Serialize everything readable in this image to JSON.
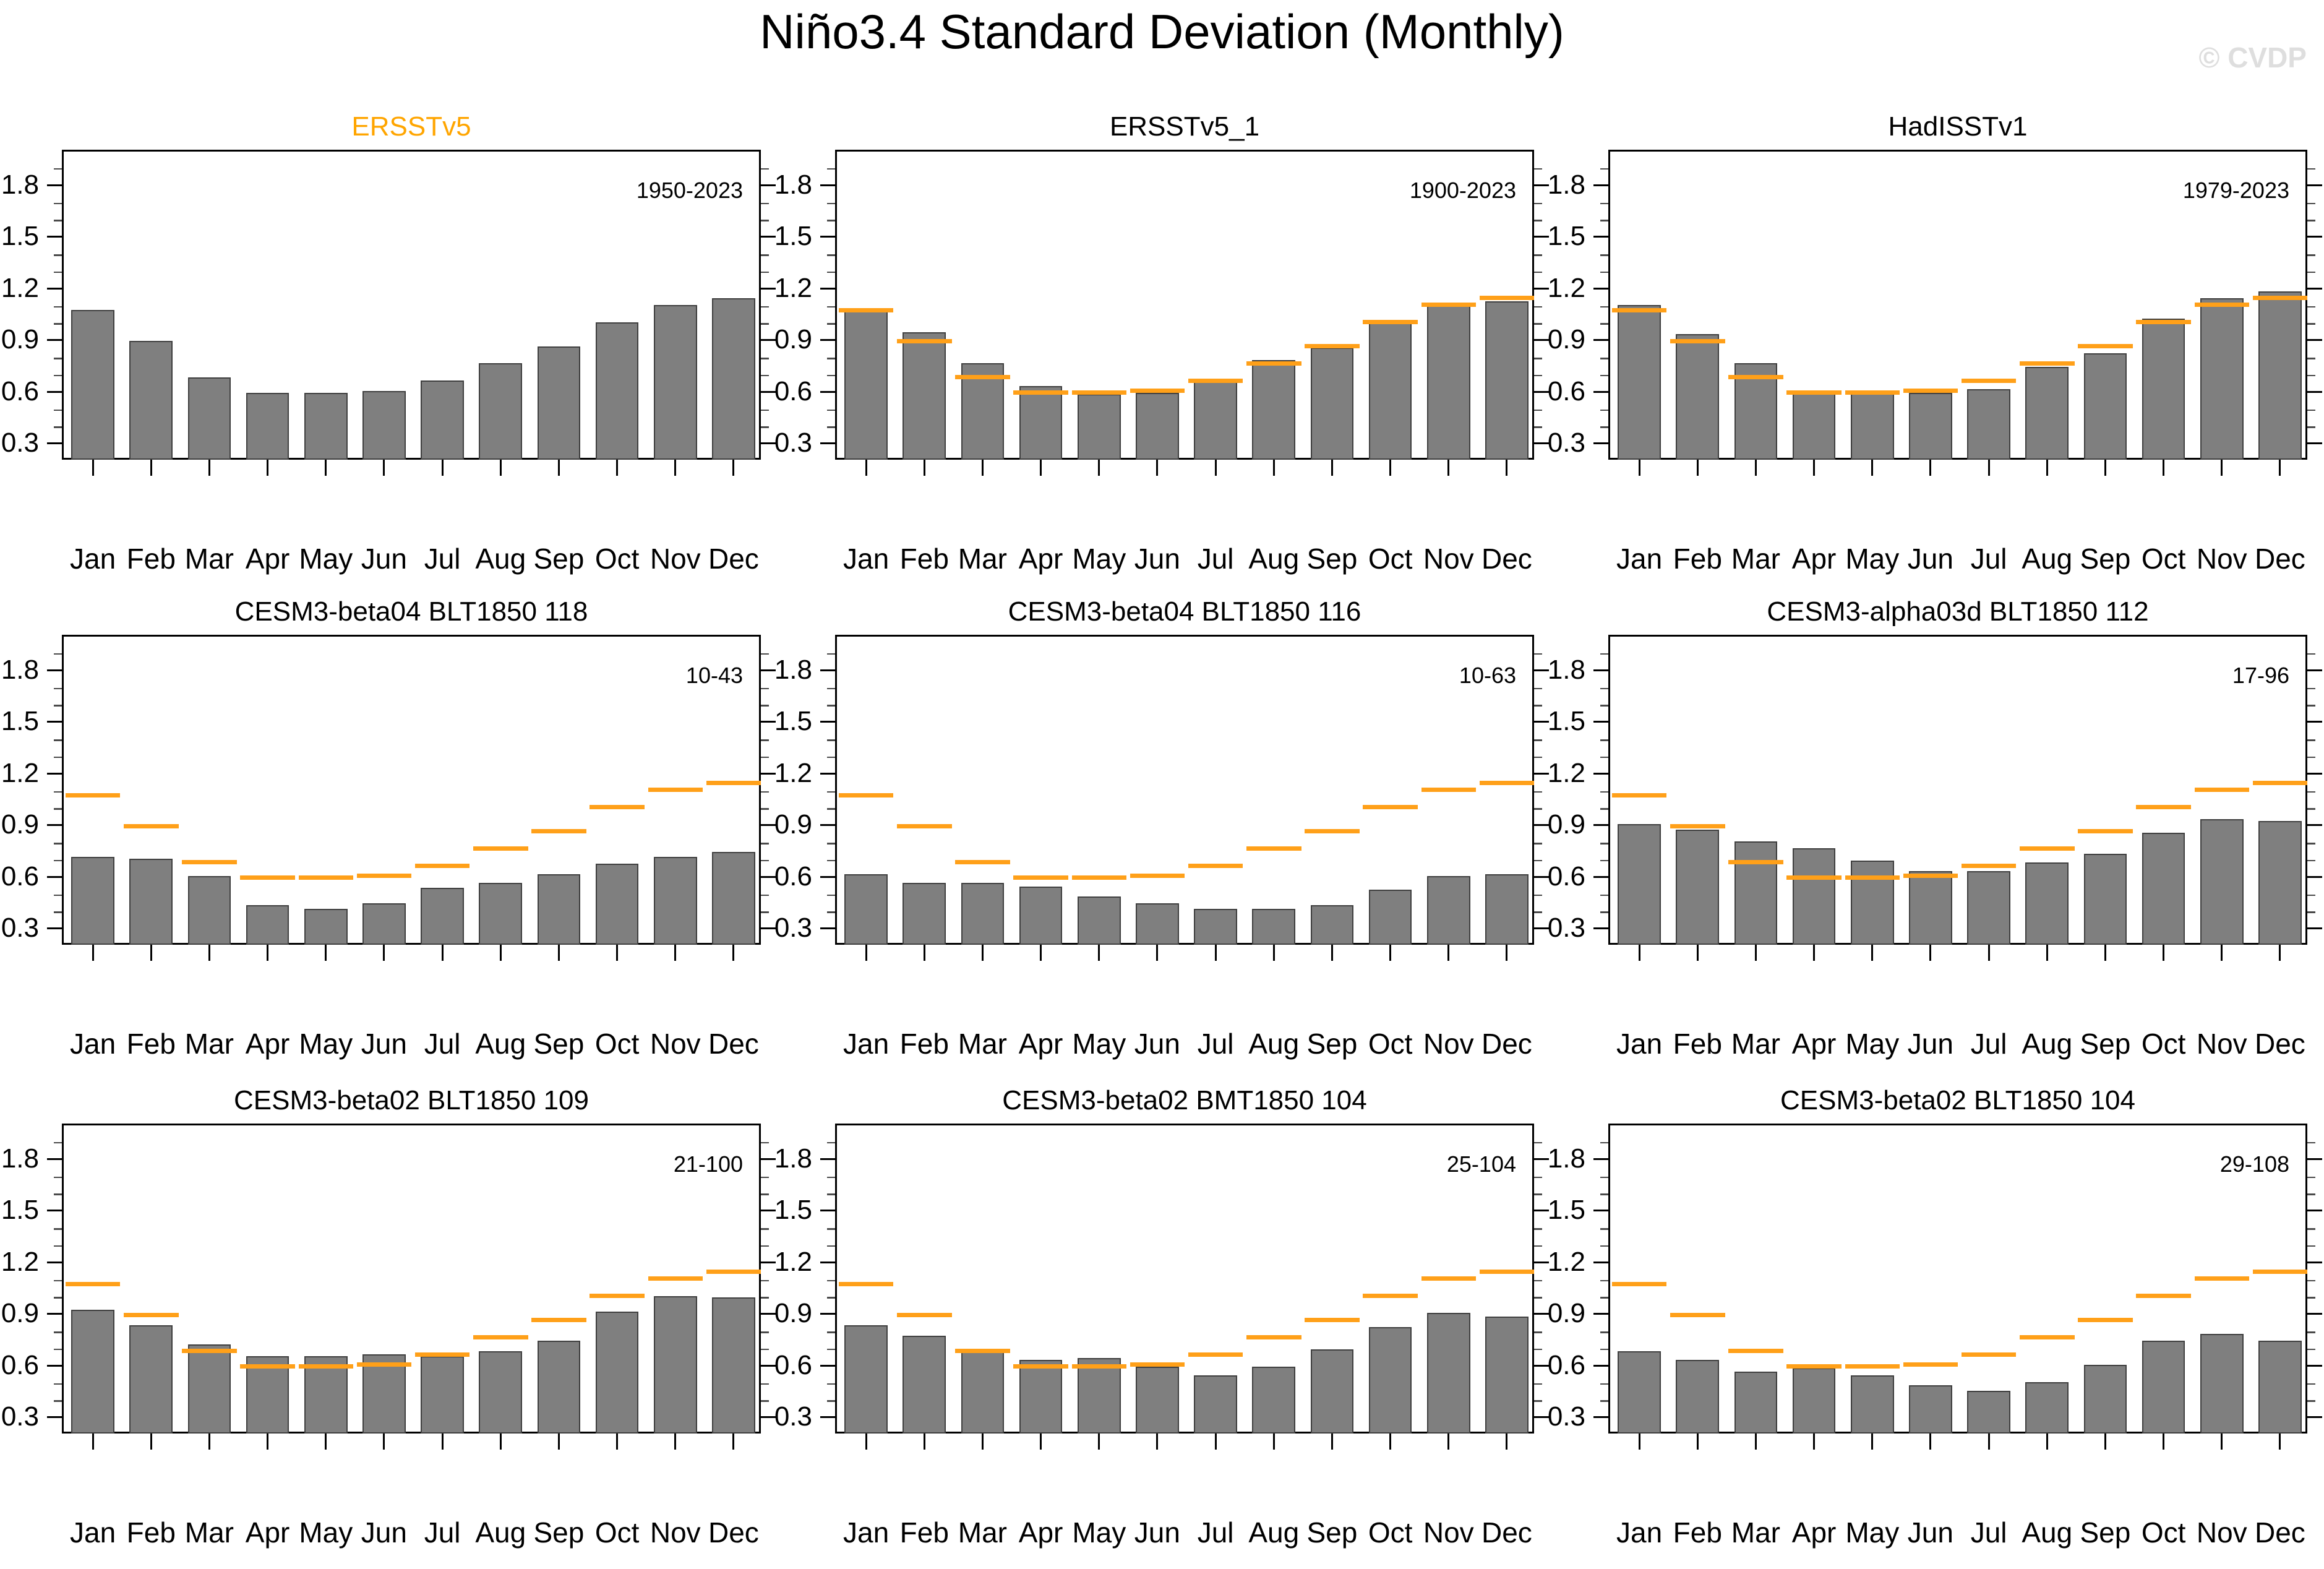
{
  "title": "Niño3.4 Standard Deviation (Monthly)",
  "watermark": "© CVDP",
  "colors": {
    "bar_fill": "#7f7f7f",
    "bar_outline": "#3f3f3f",
    "reference_line": "#ffa019",
    "obs_title": "#ffa500",
    "watermark": "#dedede",
    "text": "#000000"
  },
  "axis": {
    "y_min": 0.2,
    "y_max": 2.0,
    "y_major_ticks": [
      0.3,
      0.6,
      0.9,
      1.2,
      1.5,
      1.8
    ],
    "y_minor_step": 0.1,
    "months": [
      "Jan",
      "Feb",
      "Mar",
      "Apr",
      "May",
      "Jun",
      "Jul",
      "Aug",
      "Sep",
      "Oct",
      "Nov",
      "Dec"
    ]
  },
  "reference": {
    "name": "ERSSTv5",
    "values": [
      1.08,
      0.9,
      0.69,
      0.6,
      0.6,
      0.61,
      0.67,
      0.77,
      0.87,
      1.01,
      1.11,
      1.15
    ]
  },
  "chart_data": [
    {
      "type": "bar",
      "title": "ERSSTv5",
      "title_color": "#ffa500",
      "period": "1950-2023",
      "categories": [
        "Jan",
        "Feb",
        "Mar",
        "Apr",
        "May",
        "Jun",
        "Jul",
        "Aug",
        "Sep",
        "Oct",
        "Nov",
        "Dec"
      ],
      "values": [
        1.08,
        0.9,
        0.69,
        0.6,
        0.6,
        0.61,
        0.67,
        0.77,
        0.87,
        1.01,
        1.11,
        1.15
      ],
      "show_reference": false,
      "ylim": [
        0.2,
        2.0
      ]
    },
    {
      "type": "bar",
      "title": "ERSSTv5_1",
      "title_color": "#000000",
      "period": "1900-2023",
      "categories": [
        "Jan",
        "Feb",
        "Mar",
        "Apr",
        "May",
        "Jun",
        "Jul",
        "Aug",
        "Sep",
        "Oct",
        "Nov",
        "Dec"
      ],
      "values": [
        1.09,
        0.95,
        0.77,
        0.64,
        0.59,
        0.6,
        0.67,
        0.79,
        0.86,
        1.02,
        1.11,
        1.13
      ],
      "show_reference": true,
      "ylim": [
        0.2,
        2.0
      ]
    },
    {
      "type": "bar",
      "title": "HadISSTv1",
      "title_color": "#000000",
      "period": "1979-2023",
      "categories": [
        "Jan",
        "Feb",
        "Mar",
        "Apr",
        "May",
        "Jun",
        "Jul",
        "Aug",
        "Sep",
        "Oct",
        "Nov",
        "Dec"
      ],
      "values": [
        1.11,
        0.94,
        0.77,
        0.61,
        0.61,
        0.6,
        0.62,
        0.75,
        0.83,
        1.03,
        1.15,
        1.19
      ],
      "show_reference": true,
      "ylim": [
        0.2,
        2.0
      ]
    },
    {
      "type": "bar",
      "title": "CESM3-beta04 BLT1850 118",
      "title_color": "#000000",
      "period": "10-43",
      "categories": [
        "Jan",
        "Feb",
        "Mar",
        "Apr",
        "May",
        "Jun",
        "Jul",
        "Aug",
        "Sep",
        "Oct",
        "Nov",
        "Dec"
      ],
      "values": [
        0.72,
        0.71,
        0.61,
        0.44,
        0.42,
        0.45,
        0.54,
        0.57,
        0.62,
        0.68,
        0.72,
        0.75
      ],
      "show_reference": true,
      "ylim": [
        0.2,
        2.0
      ]
    },
    {
      "type": "bar",
      "title": "CESM3-beta04 BLT1850 116",
      "title_color": "#000000",
      "period": "10-63",
      "categories": [
        "Jan",
        "Feb",
        "Mar",
        "Apr",
        "May",
        "Jun",
        "Jul",
        "Aug",
        "Sep",
        "Oct",
        "Nov",
        "Dec"
      ],
      "values": [
        0.62,
        0.57,
        0.57,
        0.55,
        0.49,
        0.45,
        0.42,
        0.42,
        0.44,
        0.53,
        0.61,
        0.62
      ],
      "show_reference": true,
      "ylim": [
        0.2,
        2.0
      ]
    },
    {
      "type": "bar",
      "title": "CESM3-alpha03d BLT1850 112",
      "title_color": "#000000",
      "period": "17-96",
      "categories": [
        "Jan",
        "Feb",
        "Mar",
        "Apr",
        "May",
        "Jun",
        "Jul",
        "Aug",
        "Sep",
        "Oct",
        "Nov",
        "Dec"
      ],
      "values": [
        0.91,
        0.88,
        0.81,
        0.77,
        0.7,
        0.64,
        0.64,
        0.69,
        0.74,
        0.86,
        0.94,
        0.93
      ],
      "show_reference": true,
      "ylim": [
        0.2,
        2.0
      ]
    },
    {
      "type": "bar",
      "title": "CESM3-beta02 BLT1850 109",
      "title_color": "#000000",
      "period": "21-100",
      "categories": [
        "Jan",
        "Feb",
        "Mar",
        "Apr",
        "May",
        "Jun",
        "Jul",
        "Aug",
        "Sep",
        "Oct",
        "Nov",
        "Dec"
      ],
      "values": [
        0.93,
        0.84,
        0.73,
        0.66,
        0.66,
        0.67,
        0.66,
        0.69,
        0.75,
        0.92,
        1.01,
        1.0
      ],
      "show_reference": true,
      "ylim": [
        0.2,
        2.0
      ]
    },
    {
      "type": "bar",
      "title": "CESM3-beta02 BMT1850 104",
      "title_color": "#000000",
      "period": "25-104",
      "categories": [
        "Jan",
        "Feb",
        "Mar",
        "Apr",
        "May",
        "Jun",
        "Jul",
        "Aug",
        "Sep",
        "Oct",
        "Nov",
        "Dec"
      ],
      "values": [
        0.84,
        0.78,
        0.7,
        0.64,
        0.65,
        0.6,
        0.55,
        0.6,
        0.7,
        0.83,
        0.91,
        0.89
      ],
      "show_reference": true,
      "ylim": [
        0.2,
        2.0
      ]
    },
    {
      "type": "bar",
      "title": "CESM3-beta02 BLT1850 104",
      "title_color": "#000000",
      "period": "29-108",
      "categories": [
        "Jan",
        "Feb",
        "Mar",
        "Apr",
        "May",
        "Jun",
        "Jul",
        "Aug",
        "Sep",
        "Oct",
        "Nov",
        "Dec"
      ],
      "values": [
        0.69,
        0.64,
        0.57,
        0.59,
        0.55,
        0.49,
        0.46,
        0.51,
        0.61,
        0.75,
        0.79,
        0.75
      ],
      "show_reference": true,
      "ylim": [
        0.2,
        2.0
      ]
    }
  ]
}
